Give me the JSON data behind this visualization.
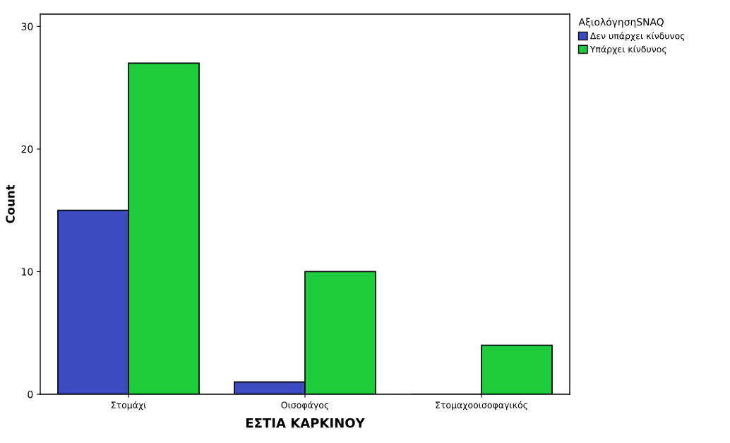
{
  "chart_data": {
    "type": "bar",
    "xlabel": "ΕΣΤΙΑ ΚΑΡΚΙΝΟΥ",
    "ylabel": "Count",
    "legend_title": "ΑξιολόγησηSNAQ",
    "categories": [
      "Στομάχι",
      "Οισοφάγος",
      "Στομαχοοισοφαγικός"
    ],
    "series": [
      {
        "name": "Δεν υπάρχει κίνδυνος",
        "color": "#3a4cc0",
        "values": [
          15,
          1,
          0
        ]
      },
      {
        "name": "Υπάρχει κίνδυνος",
        "color": "#1ecb3c",
        "values": [
          27,
          10,
          4
        ]
      }
    ],
    "ylim": [
      0,
      31
    ],
    "yticks": [
      0,
      10,
      20,
      30
    ],
    "grid": false,
    "legend": "top right"
  }
}
